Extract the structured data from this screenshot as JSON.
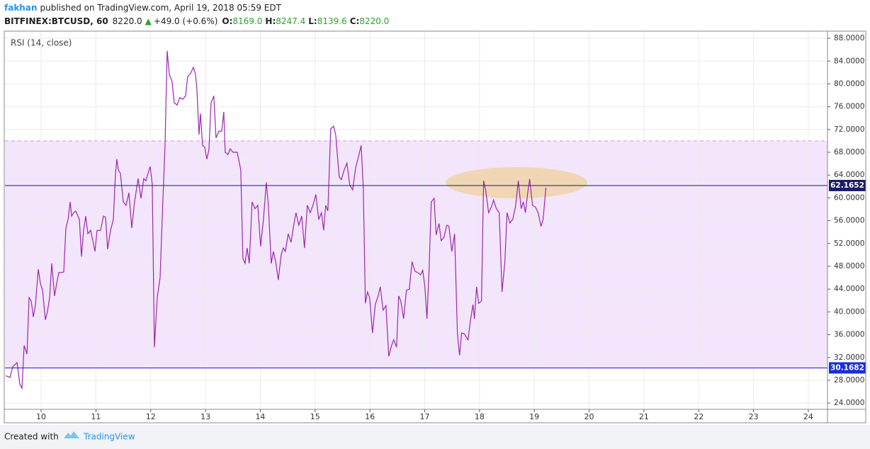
{
  "header": {
    "author": "fakhan",
    "published": "published on TradingView.com, April 19, 2018 05:59 EDT",
    "symbol": "BITFINEX:BTCUSD, 60",
    "price": "8220.0",
    "arrow": "▲",
    "change": "+49.0 (+0.6%)",
    "ohlc": [
      {
        "label": "O:",
        "value": "8169.0"
      },
      {
        "label": "H:",
        "value": "8247.4"
      },
      {
        "label": "L:",
        "value": "8139.6"
      },
      {
        "label": "C:",
        "value": "8220.0"
      }
    ]
  },
  "footer": {
    "text": "Created with",
    "brand": "TradingView"
  },
  "chart_data": {
    "type": "line",
    "x": [
      9.354,
      9.432,
      9.483,
      9.561,
      9.612,
      9.651,
      9.69,
      9.742,
      9.78,
      9.819,
      9.858,
      9.897,
      9.948,
      9.987,
      10.026,
      10.078,
      10.116,
      10.155,
      10.194,
      10.245,
      10.284,
      10.323,
      10.362,
      10.413,
      10.452,
      10.491,
      10.53,
      10.556,
      10.594,
      10.633,
      10.698,
      10.736,
      10.775,
      10.814,
      10.853,
      10.904,
      10.943,
      10.982,
      11.021,
      11.085,
      11.137,
      11.176,
      11.214,
      11.266,
      11.318,
      11.357,
      11.382,
      11.408,
      11.447,
      11.499,
      11.55,
      11.602,
      11.654,
      11.705,
      11.77,
      11.822,
      11.873,
      11.912,
      11.951,
      11.99,
      12.028,
      12.067,
      12.119,
      12.171,
      12.209,
      12.261,
      12.3,
      12.339,
      12.39,
      12.429,
      12.481,
      12.532,
      12.584,
      12.636,
      12.674,
      12.726,
      12.778,
      12.817,
      12.842,
      12.881,
      12.907,
      12.946,
      12.985,
      13.023,
      13.062,
      13.101,
      13.152,
      13.191,
      13.243,
      13.295,
      13.333,
      13.359,
      13.411,
      13.45,
      13.501,
      13.579,
      13.643,
      13.682,
      13.721,
      13.76,
      13.798,
      13.85,
      13.902,
      13.954,
      14.005,
      14.057,
      14.109,
      14.147,
      14.199,
      14.238,
      14.277,
      14.328,
      14.38,
      14.419,
      14.457,
      14.509,
      14.561,
      14.6,
      14.651,
      14.703,
      14.755,
      14.806,
      14.858,
      14.91,
      14.961,
      15.013,
      15.065,
      15.116,
      15.155,
      15.194,
      15.233,
      15.284,
      15.336,
      15.375,
      15.439,
      15.478,
      15.53,
      15.581,
      15.633,
      15.685,
      15.736,
      15.801,
      15.84,
      15.879,
      15.917,
      15.956,
      15.995,
      16.047,
      16.098,
      16.15,
      16.189,
      16.24,
      16.292,
      16.344,
      16.395,
      16.434,
      16.486,
      16.525,
      16.563,
      16.615,
      16.667,
      16.718,
      16.77,
      16.822,
      16.873,
      16.925,
      16.964,
      17.003,
      17.041,
      17.08,
      17.119,
      17.171,
      17.209,
      17.261,
      17.3,
      17.351,
      17.403,
      17.442,
      17.494,
      17.545,
      17.597,
      17.636,
      17.674,
      17.726,
      17.791,
      17.83,
      17.881,
      17.907,
      17.946,
      17.985,
      18.036,
      18.075,
      18.114,
      18.166,
      18.217,
      18.256,
      18.308,
      18.359,
      18.411,
      18.463,
      18.502,
      18.553,
      18.605,
      18.656,
      18.708,
      18.76,
      18.799,
      18.837,
      18.876,
      18.915,
      18.967,
      19.018,
      19.07,
      19.122,
      19.16,
      19.212
    ],
    "series": [
      {
        "name": "RSI (14, close)",
        "color": "#9c27b0",
        "values": [
          28.8,
          28.5,
          30.4,
          31.1,
          27.3,
          26.6,
          34.1,
          32.6,
          42.5,
          41.9,
          39.1,
          41.3,
          47.5,
          45.0,
          43.8,
          38.6,
          40.1,
          42.5,
          48.5,
          42.8,
          45.0,
          46.9,
          46.9,
          47.0,
          54.7,
          56.2,
          59.3,
          56.8,
          57.4,
          57.7,
          56.2,
          49.7,
          54.3,
          56.8,
          53.7,
          54.3,
          52.5,
          50.6,
          54.3,
          54.3,
          56.8,
          56.6,
          51.0,
          54.3,
          56.2,
          64.3,
          66.8,
          64.9,
          64.3,
          59.3,
          58.7,
          60.9,
          54.7,
          59.3,
          63.4,
          59.9,
          63.4,
          63.0,
          64.3,
          65.5,
          62.4,
          33.8,
          42.5,
          46.0,
          56.2,
          69.2,
          85.8,
          81.7,
          80.4,
          76.7,
          76.3,
          77.6,
          77.3,
          77.9,
          81.3,
          81.8,
          82.9,
          81.7,
          79.2,
          71.1,
          74.8,
          69.2,
          68.9,
          66.8,
          68.4,
          76.7,
          77.9,
          70.5,
          71.7,
          71.7,
          75.1,
          68.0,
          67.6,
          68.6,
          68.0,
          68.0,
          64.9,
          49.4,
          48.5,
          51.2,
          48.5,
          59.3,
          58.1,
          58.7,
          51.5,
          56.2,
          62.7,
          58.7,
          48.5,
          50.6,
          49.0,
          45.6,
          50.0,
          51.2,
          50.6,
          53.7,
          52.2,
          54.7,
          57.4,
          55.2,
          56.8,
          51.2,
          58.7,
          57.4,
          58.7,
          60.6,
          56.2,
          57.4,
          54.3,
          58.7,
          57.7,
          72.1,
          72.6,
          71.1,
          63.7,
          63.2,
          64.9,
          66.1,
          62.2,
          61.4,
          65.1,
          67.6,
          69.2,
          61.8,
          41.5,
          43.5,
          42.5,
          36.3,
          41.3,
          42.8,
          44.4,
          40.3,
          41.1,
          32.2,
          34.1,
          35.1,
          33.8,
          42.8,
          41.9,
          38.8,
          43.8,
          44.0,
          48.8,
          47.1,
          46.9,
          46.5,
          47.3,
          44.4,
          38.8,
          47.5,
          59.3,
          59.9,
          53.5,
          55.5,
          52.5,
          53.1,
          55.2,
          55.0,
          50.6,
          53.7,
          36.1,
          32.4,
          36.3,
          36.1,
          35.1,
          38.2,
          41.3,
          38.8,
          44.4,
          41.5,
          41.9,
          63.0,
          61.2,
          57.4,
          58.4,
          59.6,
          58.1,
          57.4,
          43.5,
          48.8,
          57.4,
          55.6,
          56.2,
          58.4,
          63.0,
          58.1,
          59.3,
          57.4,
          60.6,
          63.3,
          58.7,
          58.4,
          57.4,
          55.0,
          56.2,
          61.8
        ]
      }
    ],
    "band": {
      "lower": 30,
      "upper": 70,
      "color": "#f3e5fb"
    },
    "hlines": [
      {
        "value": 62.1652,
        "color": "#1c1c66"
      },
      {
        "value": 30.1682,
        "color": "#1a2fd6"
      }
    ],
    "xlim": [
      9.34,
      24.35
    ],
    "ylim": [
      22.9,
      89.25
    ],
    "xticks": [
      10,
      11,
      12,
      13,
      14,
      15,
      16,
      17,
      18,
      19,
      20,
      21,
      22,
      23,
      24
    ],
    "yticks": [
      {
        "value": 24,
        "label": "24.0000"
      },
      {
        "value": 28,
        "label": "28.0000"
      },
      {
        "value": 32,
        "label": "32.0000"
      },
      {
        "value": 36,
        "label": "36.0000"
      },
      {
        "value": 40,
        "label": "40.0000"
      },
      {
        "value": 44,
        "label": "44.0000"
      },
      {
        "value": 48,
        "label": "48.0000"
      },
      {
        "value": 52,
        "label": "52.0000"
      },
      {
        "value": 56,
        "label": "56.0000"
      },
      {
        "value": 60,
        "label": "60.0000"
      },
      {
        "value": 64,
        "label": "64.0000"
      },
      {
        "value": 68,
        "label": "68.0000"
      },
      {
        "value": 72,
        "label": "72.0000"
      },
      {
        "value": 76,
        "label": "76.0000"
      },
      {
        "value": 80,
        "label": "80.0000"
      },
      {
        "value": 84,
        "label": "84.0000"
      },
      {
        "value": 88,
        "label": "88.0000"
      }
    ],
    "grid": true
  }
}
